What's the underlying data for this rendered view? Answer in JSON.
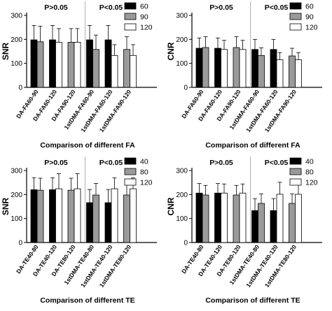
{
  "chart_data": [
    {
      "type": "bar",
      "ylabel": "SNR",
      "xlabel": "Comparison of different FA",
      "ylim": [
        0,
        300
      ],
      "yticks": [
        0,
        100,
        200,
        300
      ],
      "annotations": [
        "P>0.05",
        "P<0.05"
      ],
      "legend": [
        "60",
        "90",
        "120"
      ],
      "groups": [
        {
          "label": "DA-FA60-90",
          "series": [
            0,
            1
          ],
          "values": [
            198,
            190
          ],
          "errors": [
            60,
            65
          ]
        },
        {
          "label": "DA-FA60-120",
          "series": [
            0,
            2
          ],
          "values": [
            198,
            188
          ],
          "errors": [
            60,
            57
          ]
        },
        {
          "label": "DA-FA90-120",
          "series": [
            1,
            2
          ],
          "values": [
            188,
            188
          ],
          "errors": [
            57,
            57
          ]
        },
        {
          "label": "1stDMA-FA60-90",
          "series": [
            0,
            1
          ],
          "values": [
            198,
            158
          ],
          "errors": [
            60,
            60
          ]
        },
        {
          "label": "1stDMA-FA60-120",
          "series": [
            0,
            2
          ],
          "values": [
            198,
            133
          ],
          "errors": [
            60,
            45
          ]
        },
        {
          "label": "1stDMA-FA90-120",
          "series": [
            1,
            2
          ],
          "values": [
            158,
            133
          ],
          "errors": [
            53,
            45
          ]
        }
      ]
    },
    {
      "type": "bar",
      "ylabel": "CNR",
      "xlabel": "Comparison of different FA",
      "ylim": [
        0,
        300
      ],
      "yticks": [
        0,
        100,
        200,
        300
      ],
      "annotations": [
        "P>0.05",
        "P<0.05"
      ],
      "legend": [
        "60",
        "90",
        "120"
      ],
      "groups": [
        {
          "label": "DA-FA60-90",
          "series": [
            0,
            1
          ],
          "values": [
            163,
            166
          ],
          "errors": [
            43,
            45
          ]
        },
        {
          "label": "DA-FA60-120",
          "series": [
            0,
            2
          ],
          "values": [
            163,
            158
          ],
          "errors": [
            43,
            38
          ]
        },
        {
          "label": "DA-FA90-120",
          "series": [
            1,
            2
          ],
          "values": [
            166,
            158
          ],
          "errors": [
            45,
            38
          ]
        },
        {
          "label": "1stDMA-FA60-90",
          "series": [
            0,
            1
          ],
          "values": [
            158,
            133
          ],
          "errors": [
            42,
            32
          ]
        },
        {
          "label": "1stDMA-FA60-120",
          "series": [
            0,
            2
          ],
          "values": [
            158,
            115
          ],
          "errors": [
            42,
            30
          ]
        },
        {
          "label": "1stDMA-FA90-120",
          "series": [
            1,
            2
          ],
          "values": [
            131,
            115
          ],
          "errors": [
            32,
            30
          ]
        }
      ]
    },
    {
      "type": "bar",
      "ylabel": "SNR",
      "xlabel": "Comparison of different TE",
      "ylim": [
        0,
        300
      ],
      "yticks": [
        0,
        100,
        200,
        300
      ],
      "annotations": [
        "P>0.05",
        "P<0.05"
      ],
      "legend": [
        "40",
        "80",
        "120"
      ],
      "groups": [
        {
          "label": "DA-TE40-80",
          "series": [
            0,
            1
          ],
          "values": [
            220,
            218
          ],
          "errors": [
            50,
            50
          ]
        },
        {
          "label": "DA-TE40-120",
          "series": [
            0,
            2
          ],
          "values": [
            220,
            224
          ],
          "errors": [
            50,
            63
          ]
        },
        {
          "label": "DA-TE80-120",
          "series": [
            1,
            2
          ],
          "values": [
            218,
            224
          ],
          "errors": [
            50,
            63
          ]
        },
        {
          "label": "1stDMA-TE40-80",
          "series": [
            0,
            1
          ],
          "values": [
            166,
            198
          ],
          "errors": [
            55,
            48
          ]
        },
        {
          "label": "1stDMA-TE40-120",
          "series": [
            0,
            2
          ],
          "values": [
            166,
            224
          ],
          "errors": [
            55,
            45
          ]
        },
        {
          "label": "1stDMA-TE80-120",
          "series": [
            1,
            2
          ],
          "values": [
            198,
            224
          ],
          "errors": [
            48,
            45
          ]
        }
      ]
    },
    {
      "type": "bar",
      "ylabel": "CNR",
      "xlabel": "Comparison of different TE",
      "ylim": [
        0,
        300
      ],
      "yticks": [
        0,
        100,
        200,
        300
      ],
      "annotations": [
        "P>0.05",
        "P<0.05"
      ],
      "legend": [
        "40",
        "80",
        "120"
      ],
      "groups": [
        {
          "label": "DA-TE40-80",
          "series": [
            0,
            1
          ],
          "values": [
            206,
            198
          ],
          "errors": [
            40,
            40
          ]
        },
        {
          "label": "DA-TE40-120",
          "series": [
            0,
            2
          ],
          "values": [
            206,
            206
          ],
          "errors": [
            40,
            38
          ]
        },
        {
          "label": "DA-TE80-120",
          "series": [
            1,
            2
          ],
          "values": [
            198,
            206
          ],
          "errors": [
            40,
            38
          ]
        },
        {
          "label": "1stDMA-TE40-80",
          "series": [
            0,
            1
          ],
          "values": [
            133,
            163
          ],
          "errors": [
            50,
            40
          ]
        },
        {
          "label": "1stDMA-TE40-120",
          "series": [
            0,
            2
          ],
          "values": [
            133,
            201
          ],
          "errors": [
            50,
            50
          ]
        },
        {
          "label": "1stDMA-TE80-120",
          "series": [
            1,
            2
          ],
          "values": [
            163,
            201
          ],
          "errors": [
            40,
            50
          ]
        }
      ]
    }
  ],
  "colors": {
    "series": [
      "#000000",
      "#9a9a9a",
      "#ffffff"
    ],
    "separator": "#b0b0b0",
    "axis": "#000000"
  }
}
